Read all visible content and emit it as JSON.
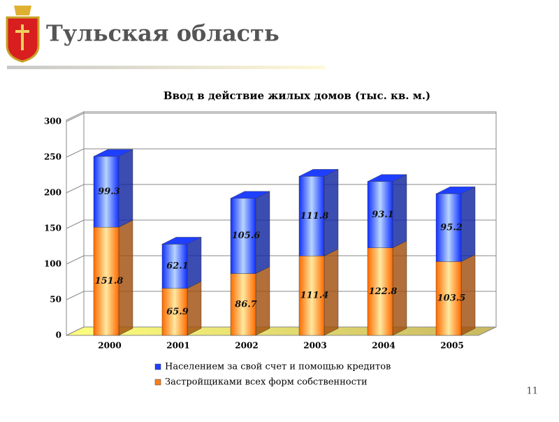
{
  "slide_title": "Тульская область",
  "page_number": "11",
  "chart_data": {
    "type": "stacked_bar_3d",
    "title": "Ввод в действие жилых домов (тыс. кв. м.)",
    "categories": [
      "2000",
      "2001",
      "2002",
      "2003",
      "2004",
      "2005"
    ],
    "series": [
      {
        "name": "Застройщиками всех форм собственности",
        "color": "#ff7f1a",
        "values": [
          151.8,
          65.9,
          86.7,
          111.4,
          122.8,
          103.5
        ]
      },
      {
        "name": "Населением за свой счет и помощью кредитов",
        "color": "#1f3fff",
        "values": [
          99.3,
          62.1,
          105.6,
          111.8,
          93.1,
          95.2
        ]
      }
    ],
    "ylim": [
      0,
      300
    ],
    "yticks": [
      0,
      50,
      100,
      150,
      200,
      250,
      300
    ],
    "grid": true
  }
}
